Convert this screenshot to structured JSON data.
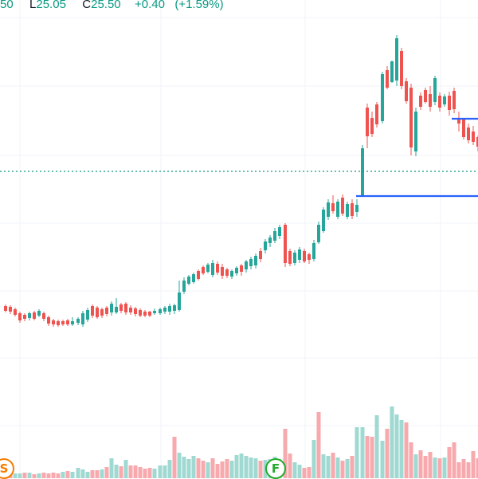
{
  "legend": {
    "open_tail": "50",
    "low_label": "L",
    "low_value": "25.05",
    "close_label": "C",
    "close_value": "25.50",
    "change": "+0.40",
    "change_pct": "(+1.59%)"
  },
  "colors": {
    "up": "#26a69a",
    "up_body": "#089981",
    "down": "#ef5350",
    "up_volume": "#9fd9d2",
    "down_volume": "#f7a9ae",
    "grid": "#f0f3fa",
    "price_line": "#089981",
    "trend_line": "#2962ff",
    "split_badge": "#f57c00",
    "financials_badge": "#22ab2b"
  },
  "markers": [
    {
      "name": "split-marker",
      "letter": "S",
      "color": "#f57c00"
    },
    {
      "name": "financials-marker",
      "letter": "F",
      "color": "#22ab2b"
    }
  ],
  "chart_data": {
    "type": "candlestick",
    "last_close": 25.5,
    "candles_up_down": "up:green, down:red",
    "volume_visible": true
  }
}
